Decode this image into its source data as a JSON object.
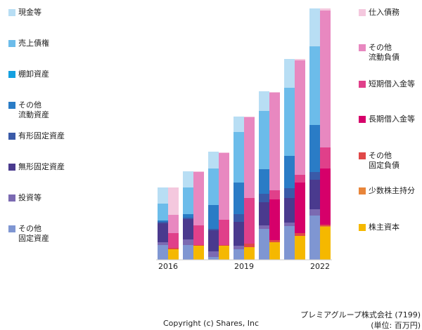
{
  "chart_data": {
    "type": "stacked-bar-pair",
    "company": "プレミアグループ株式会社 (7199)",
    "unit": "(単位: 百万円)",
    "copyright": "Copyright (c) Shares, Inc",
    "categories": [
      "2016",
      null,
      null,
      "2019",
      null,
      null,
      "2022"
    ],
    "asset_series": [
      {
        "name": "その他\n固定資産",
        "color": "#7f96d2",
        "values": [
          21,
          21,
          4,
          15,
          44,
          48,
          63
        ]
      },
      {
        "name": "投資等",
        "color": "#7b6ab2",
        "values": [
          4,
          8,
          8,
          5,
          5,
          5,
          9
        ]
      },
      {
        "name": "無形固定資産",
        "color": "#4a3a8e",
        "values": [
          27,
          29,
          30,
          34,
          33,
          35,
          42
        ]
      },
      {
        "name": "有形固定資産",
        "color": "#3a5aa8",
        "values": [
          2,
          2,
          2,
          11,
          12,
          14,
          11
        ]
      },
      {
        "name": "その他\n流動資産",
        "color": "#2a7cc6",
        "values": [
          2,
          5,
          34,
          45,
          35,
          46,
          67
        ]
      },
      {
        "name": "棚卸資産",
        "color": "#14a0e0",
        "values": [
          0,
          0,
          0,
          0,
          0,
          0,
          0
        ]
      },
      {
        "name": "売上債権",
        "color": "#6cbcea",
        "values": [
          24,
          38,
          52,
          72,
          83,
          97,
          112
        ]
      },
      {
        "name": "現金等",
        "color": "#b8def4",
        "values": [
          23,
          23,
          24,
          22,
          28,
          41,
          54
        ]
      }
    ],
    "liability_series": [
      {
        "name": "株主資本",
        "color": "#f5b800",
        "values": [
          15,
          20,
          20,
          18,
          25,
          34,
          47
        ]
      },
      {
        "name": "少数株主持分",
        "color": "#e8853a",
        "values": [
          0,
          0,
          0,
          0,
          0,
          0,
          1
        ]
      },
      {
        "name": "その他\n固定負債",
        "color": "#e04848",
        "values": [
          2,
          1,
          1,
          5,
          3,
          4,
          2
        ]
      },
      {
        "name": "長期借入金等",
        "color": "#d6006a",
        "values": [
          0,
          0,
          0,
          0,
          58,
          72,
          80
        ]
      },
      {
        "name": "短期借入金等",
        "color": "#e0408a",
        "values": [
          21,
          28,
          36,
          65,
          13,
          11,
          30
        ]
      },
      {
        "name": "その他\n流動負債",
        "color": "#e888c0",
        "values": [
          26,
          76,
          95,
          115,
          139,
          163,
          195
        ]
      },
      {
        "name": "仕入債務",
        "color": "#f4c8de",
        "values": [
          39,
          1,
          1,
          1,
          1,
          2,
          3
        ]
      }
    ]
  }
}
